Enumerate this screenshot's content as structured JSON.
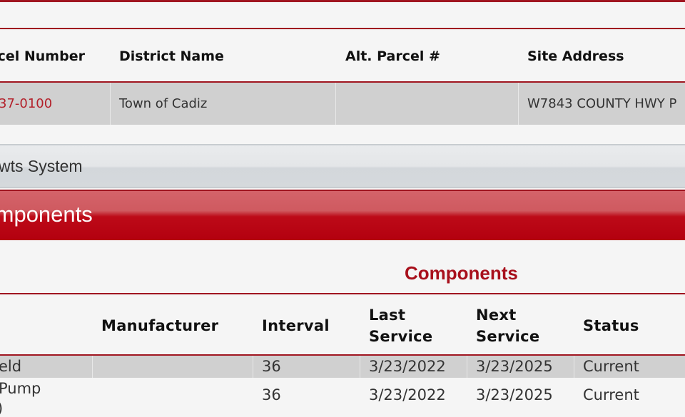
{
  "colors": {
    "accent": "#b3000f",
    "link": "#b3202a",
    "row_shade": "#d0d0d0",
    "background": "#f5f5f5"
  },
  "parcel_table": {
    "headers": [
      "Parcel Number",
      "District Name",
      "Alt. Parcel #",
      "Site Address"
    ],
    "row": {
      "parcel_number": "37-0100",
      "district_name": "Town of Cadiz",
      "alt_parcel": "",
      "site_address": "W7843 COUNTY HWY P"
    }
  },
  "system_bar": {
    "label": "wts System"
  },
  "components_banner": {
    "title": "Components"
  },
  "components_table": {
    "caption": "Components",
    "headers": [
      "",
      "Manufacturer",
      "Interval",
      "Last Service",
      "Next Service",
      "Status"
    ],
    "rows": [
      {
        "component": "eld",
        "manufacturer": "",
        "interval": "36",
        "last_service": "3/23/2022",
        "next_service": "3/23/2025",
        "status": "Current"
      },
      {
        "component": "Pump",
        "component_extra": ")",
        "manufacturer": "",
        "interval": "36",
        "last_service": "3/23/2022",
        "next_service": "3/23/2025",
        "status": "Current"
      }
    ]
  }
}
